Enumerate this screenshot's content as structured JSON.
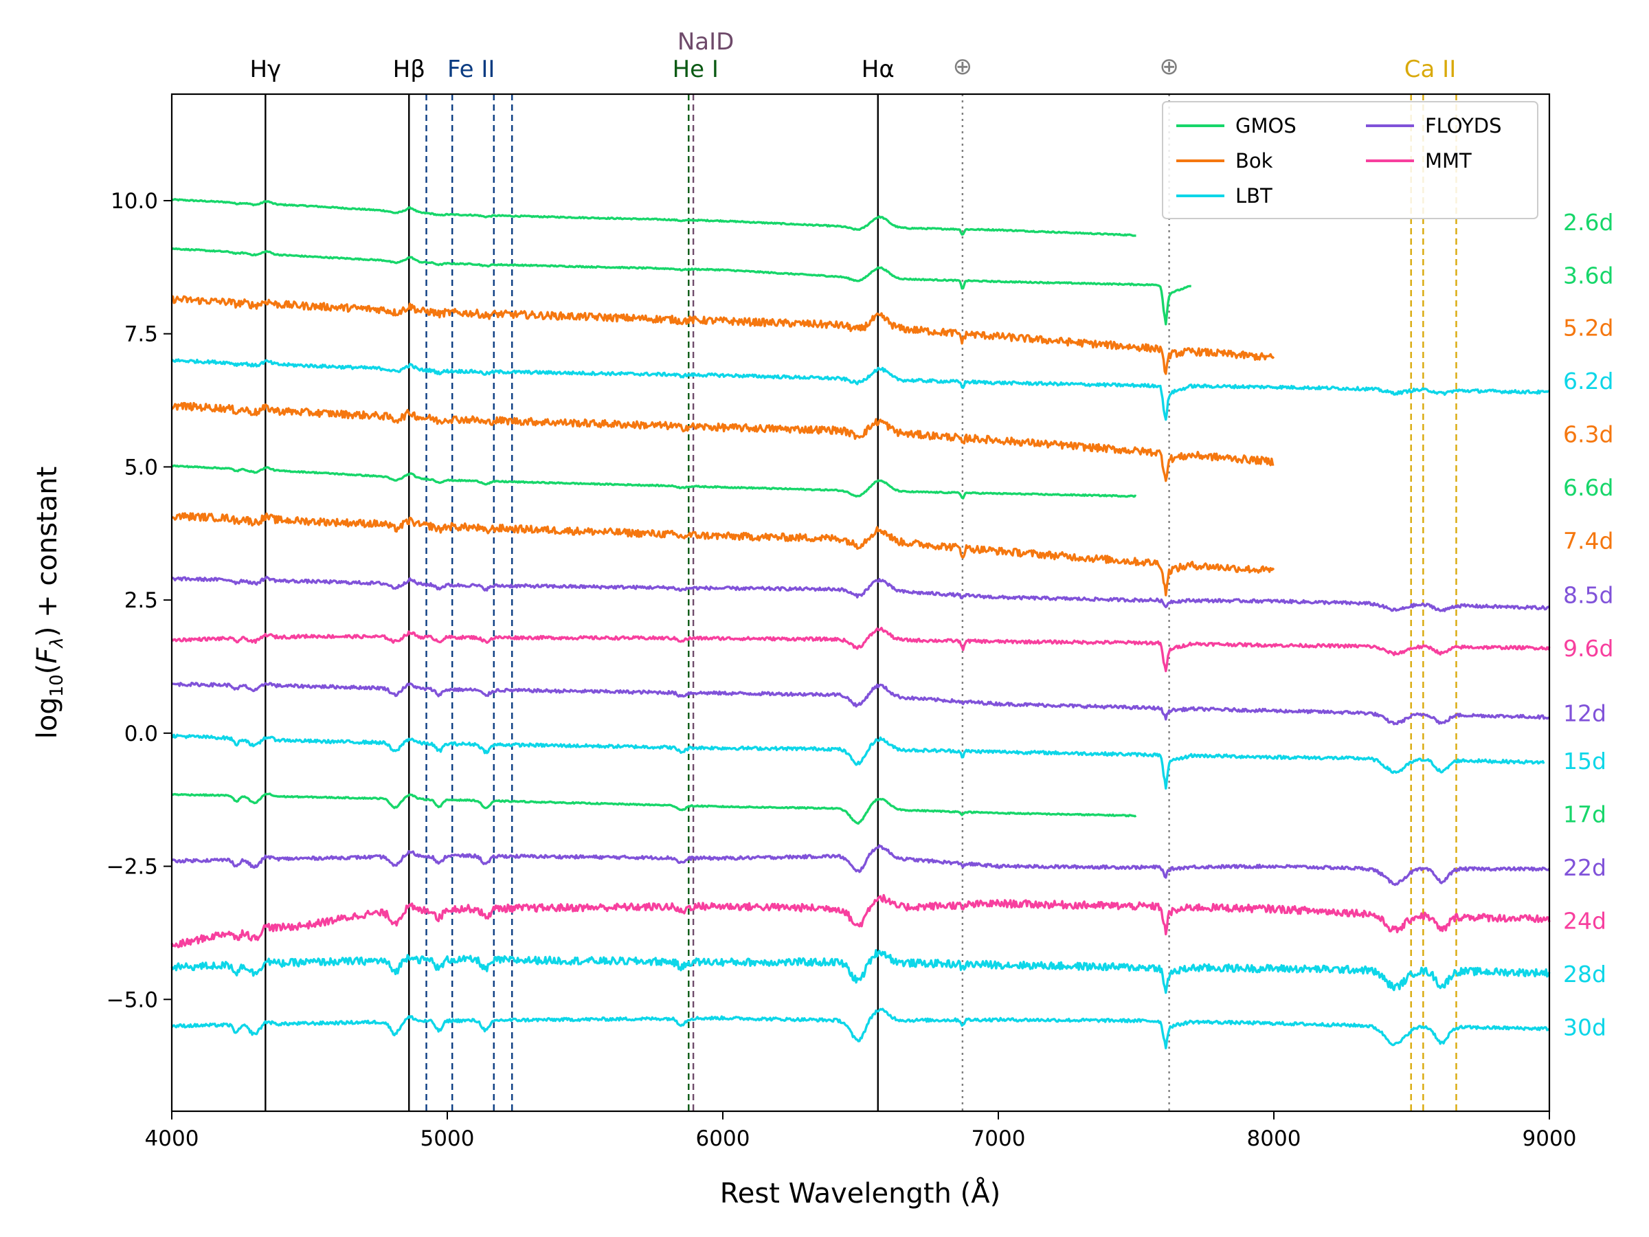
{
  "chart_data": {
    "type": "line",
    "title": "",
    "xlabel": "Rest Wavelength (Å)",
    "ylabel_parts": {
      "pre": "log",
      "sub": "10",
      "open": "(",
      "F": "F",
      "lambda": "λ",
      "close": ") + constant"
    },
    "xlim": [
      4000,
      9000
    ],
    "ylim": [
      -7.1,
      12.0
    ],
    "xticks": [
      4000,
      5000,
      6000,
      7000,
      8000,
      9000
    ],
    "yticks": [
      -5.0,
      -2.5,
      0.0,
      2.5,
      5.0,
      7.5,
      10.0
    ],
    "yticklabels": [
      "−5.0",
      "−2.5",
      "0.0",
      "2.5",
      "5.0",
      "7.5",
      "10.0"
    ],
    "instrument_colors": {
      "GMOS": "#17d66a",
      "Bok": "#f5770f",
      "LBT": "#0dd6e8",
      "FLOYDS": "#8052d9",
      "MMT": "#f73f9e"
    },
    "legend": {
      "position": "upper-right",
      "columns": 2,
      "entries": [
        "GMOS",
        "Bok",
        "LBT",
        "FLOYDS",
        "MMT"
      ]
    },
    "line_markers": [
      {
        "label": "Hγ",
        "wavelength": 4340,
        "color": "#000000",
        "style": "solid"
      },
      {
        "label": "Hβ",
        "wavelength": 4861,
        "color": "#000000",
        "style": "solid"
      },
      {
        "label": "Fe II",
        "wavelengths": [
          4924,
          5018,
          5169,
          5235
        ],
        "color": "#0b3c82",
        "style": "dashed"
      },
      {
        "label": "He I",
        "wavelength": 5876,
        "color": "#0b5a14",
        "style": "dashed"
      },
      {
        "label": "NaID",
        "wavelength": 5893,
        "color": "#6e4a6a",
        "style": "dashed"
      },
      {
        "label": "Hα",
        "wavelength": 6563,
        "color": "#000000",
        "style": "solid"
      },
      {
        "label": "⊕",
        "wavelength": 6870,
        "color": "#7f7f7f",
        "style": "dotted"
      },
      {
        "label": "⊕",
        "wavelength": 7620,
        "color": "#7f7f7f",
        "style": "dotted"
      },
      {
        "label": "Ca II",
        "wavelengths": [
          8498,
          8542,
          8662
        ],
        "color": "#d9a90a",
        "style": "dashed"
      }
    ],
    "series": [
      {
        "phase": "2.6d",
        "instrument": "GMOS",
        "x_range": [
          4000,
          7500
        ],
        "anchors": [
          [
            4000,
            10.02
          ],
          [
            4500,
            9.9
          ],
          [
            5000,
            9.74
          ],
          [
            6000,
            9.62
          ],
          [
            6500,
            9.5
          ],
          [
            7000,
            9.45
          ],
          [
            7500,
            9.35
          ]
        ],
        "label_y": 9.6,
        "snr": "high",
        "absorption": 0.1,
        "telluric": [
          0.1,
          0.0
        ]
      },
      {
        "phase": "3.6d",
        "instrument": "GMOS",
        "x_range": [
          4000,
          7700
        ],
        "anchors": [
          [
            4000,
            9.1
          ],
          [
            4500,
            8.95
          ],
          [
            5000,
            8.82
          ],
          [
            6000,
            8.7
          ],
          [
            6500,
            8.55
          ],
          [
            7000,
            8.48
          ],
          [
            7550,
            8.42
          ],
          [
            7700,
            8.4
          ]
        ],
        "label_y": 8.6,
        "snr": "high",
        "absorption": 0.12,
        "telluric": [
          0.15,
          0.6
        ]
      },
      {
        "phase": "5.2d",
        "instrument": "Bok",
        "x_range": [
          4000,
          8000
        ],
        "anchors": [
          [
            4000,
            8.15
          ],
          [
            4500,
            8.02
          ],
          [
            5000,
            7.9
          ],
          [
            6000,
            7.74
          ],
          [
            6500,
            7.65
          ],
          [
            7000,
            7.45
          ],
          [
            7500,
            7.25
          ],
          [
            8000,
            7.05
          ]
        ],
        "label_y": 7.62,
        "snr": "low",
        "absorption": 0.15,
        "telluric": [
          0.15,
          0.35
        ]
      },
      {
        "phase": "6.2d",
        "instrument": "LBT",
        "x_range": [
          4000,
          9000
        ],
        "anchors": [
          [
            4000,
            7.0
          ],
          [
            4500,
            6.9
          ],
          [
            5000,
            6.8
          ],
          [
            6000,
            6.72
          ],
          [
            6500,
            6.65
          ],
          [
            7000,
            6.58
          ],
          [
            7500,
            6.53
          ],
          [
            8000,
            6.5
          ],
          [
            9000,
            6.4
          ]
        ],
        "label_y": 6.62,
        "snr": "med",
        "absorption": 0.15,
        "telluric": [
          0.1,
          0.55
        ]
      },
      {
        "phase": "6.3d",
        "instrument": "Bok",
        "x_range": [
          4000,
          8000
        ],
        "anchors": [
          [
            4000,
            6.15
          ],
          [
            4500,
            6.02
          ],
          [
            5000,
            5.9
          ],
          [
            6000,
            5.74
          ],
          [
            6500,
            5.68
          ],
          [
            7000,
            5.5
          ],
          [
            7500,
            5.3
          ],
          [
            8000,
            5.1
          ]
        ],
        "label_y": 5.62,
        "snr": "low",
        "absorption": 0.2,
        "telluric": [
          0.15,
          0.4
        ]
      },
      {
        "phase": "6.6d",
        "instrument": "GMOS",
        "x_range": [
          4000,
          7500
        ],
        "anchors": [
          [
            4000,
            5.02
          ],
          [
            4500,
            4.9
          ],
          [
            5000,
            4.75
          ],
          [
            6000,
            4.62
          ],
          [
            6500,
            4.55
          ],
          [
            7000,
            4.5
          ],
          [
            7500,
            4.45
          ]
        ],
        "label_y": 4.62,
        "snr": "high",
        "absorption": 0.2,
        "telluric": [
          0.1,
          0.0
        ]
      },
      {
        "phase": "7.4d",
        "instrument": "Bok",
        "x_range": [
          4000,
          8000
        ],
        "anchors": [
          [
            4000,
            4.08
          ],
          [
            4500,
            3.98
          ],
          [
            5000,
            3.88
          ],
          [
            6000,
            3.7
          ],
          [
            6500,
            3.65
          ],
          [
            7000,
            3.42
          ],
          [
            7500,
            3.22
          ],
          [
            8000,
            3.05
          ]
        ],
        "label_y": 3.62,
        "snr": "low",
        "absorption": 0.25,
        "telluric": [
          0.15,
          0.45
        ]
      },
      {
        "phase": "8.5d",
        "instrument": "FLOYDS",
        "x_range": [
          4000,
          9000
        ],
        "anchors": [
          [
            4000,
            2.9
          ],
          [
            4500,
            2.85
          ],
          [
            5000,
            2.78
          ],
          [
            6000,
            2.72
          ],
          [
            6500,
            2.7
          ],
          [
            7000,
            2.55
          ],
          [
            7500,
            2.5
          ],
          [
            8000,
            2.48
          ],
          [
            9000,
            2.35
          ]
        ],
        "label_y": 2.6,
        "snr": "med",
        "absorption": 0.25,
        "telluric": [
          0.05,
          0.1
        ]
      },
      {
        "phase": "9.6d",
        "instrument": "MMT",
        "x_range": [
          4000,
          9000
        ],
        "anchors": [
          [
            4000,
            1.75
          ],
          [
            4500,
            1.82
          ],
          [
            5000,
            1.8
          ],
          [
            6000,
            1.78
          ],
          [
            6500,
            1.76
          ],
          [
            7000,
            1.72
          ],
          [
            7500,
            1.7
          ],
          [
            8000,
            1.65
          ],
          [
            9000,
            1.6
          ]
        ],
        "label_y": 1.6,
        "snr": "med",
        "absorption": 0.3,
        "telluric": [
          0.15,
          0.45
        ]
      },
      {
        "phase": "12d",
        "instrument": "FLOYDS",
        "x_range": [
          4000,
          9000
        ],
        "anchors": [
          [
            4000,
            0.92
          ],
          [
            4500,
            0.88
          ],
          [
            5000,
            0.82
          ],
          [
            6000,
            0.75
          ],
          [
            6500,
            0.72
          ],
          [
            7000,
            0.55
          ],
          [
            7500,
            0.48
          ],
          [
            8000,
            0.42
          ],
          [
            9000,
            0.3
          ]
        ],
        "label_y": 0.38,
        "snr": "med",
        "absorption": 0.4,
        "telluric": [
          0.05,
          0.15
        ]
      },
      {
        "phase": "15d",
        "instrument": "LBT",
        "x_range": [
          4000,
          8980
        ],
        "anchors": [
          [
            4000,
            -0.05
          ],
          [
            4500,
            -0.15
          ],
          [
            5000,
            -0.2
          ],
          [
            6000,
            -0.28
          ],
          [
            6500,
            -0.3
          ],
          [
            7000,
            -0.35
          ],
          [
            7500,
            -0.4
          ],
          [
            8000,
            -0.45
          ],
          [
            8400,
            -0.48
          ],
          [
            8980,
            -0.55
          ]
        ],
        "label_y": -0.52,
        "snr": "med",
        "absorption": 0.55,
        "telluric": [
          0.1,
          0.5
        ]
      },
      {
        "phase": "17d",
        "instrument": "GMOS",
        "x_range": [
          4000,
          7500
        ],
        "anchors": [
          [
            4000,
            -1.15
          ],
          [
            4500,
            -1.2
          ],
          [
            5000,
            -1.25
          ],
          [
            6000,
            -1.38
          ],
          [
            6500,
            -1.42
          ],
          [
            7000,
            -1.5
          ],
          [
            7500,
            -1.55
          ]
        ],
        "label_y": -1.52,
        "snr": "high",
        "absorption": 0.55,
        "telluric": [
          0.05,
          0.0
        ]
      },
      {
        "phase": "22d",
        "instrument": "FLOYDS",
        "x_range": [
          4000,
          9000
        ],
        "anchors": [
          [
            4000,
            -2.4
          ],
          [
            4500,
            -2.35
          ],
          [
            5000,
            -2.3
          ],
          [
            6000,
            -2.35
          ],
          [
            6500,
            -2.3
          ],
          [
            7000,
            -2.5
          ],
          [
            7500,
            -2.52
          ],
          [
            8000,
            -2.5
          ],
          [
            8400,
            -2.55
          ],
          [
            9000,
            -2.55
          ]
        ],
        "label_y": -2.52,
        "snr": "med",
        "absorption": 0.6,
        "telluric": [
          0.05,
          0.15
        ]
      },
      {
        "phase": "24d",
        "instrument": "MMT",
        "x_range": [
          4000,
          9000
        ],
        "anchors": [
          [
            4000,
            -4.0
          ],
          [
            4200,
            -3.75
          ],
          [
            4500,
            -3.6
          ],
          [
            4700,
            -3.4
          ],
          [
            5000,
            -3.3
          ],
          [
            6000,
            -3.25
          ],
          [
            6500,
            -3.3
          ],
          [
            7000,
            -3.2
          ],
          [
            7500,
            -3.25
          ],
          [
            8000,
            -3.3
          ],
          [
            8400,
            -3.4
          ],
          [
            9000,
            -3.5
          ]
        ],
        "label_y": -3.52,
        "snr": "low",
        "absorption": 0.65,
        "telluric": [
          0.1,
          0.4
        ]
      },
      {
        "phase": "28d",
        "instrument": "LBT",
        "x_range": [
          4000,
          9000
        ],
        "anchors": [
          [
            4000,
            -4.4
          ],
          [
            4500,
            -4.3
          ],
          [
            5000,
            -4.25
          ],
          [
            6000,
            -4.3
          ],
          [
            6500,
            -4.3
          ],
          [
            7000,
            -4.35
          ],
          [
            7500,
            -4.4
          ],
          [
            8000,
            -4.42
          ],
          [
            8400,
            -4.45
          ],
          [
            9000,
            -4.5
          ]
        ],
        "label_y": -4.52,
        "snr": "low",
        "absorption": 0.7,
        "telluric": [
          0.1,
          0.4
        ]
      },
      {
        "phase": "30d",
        "instrument": "LBT",
        "x_range": [
          4000,
          9000
        ],
        "anchors": [
          [
            4000,
            -5.5
          ],
          [
            4500,
            -5.45
          ],
          [
            5000,
            -5.4
          ],
          [
            6000,
            -5.35
          ],
          [
            6500,
            -5.4
          ],
          [
            7000,
            -5.38
          ],
          [
            7500,
            -5.4
          ],
          [
            8000,
            -5.45
          ],
          [
            8400,
            -5.5
          ],
          [
            9000,
            -5.55
          ]
        ],
        "label_y": -5.52,
        "snr": "med",
        "absorption": 0.75,
        "telluric": [
          0.1,
          0.4
        ]
      }
    ]
  }
}
